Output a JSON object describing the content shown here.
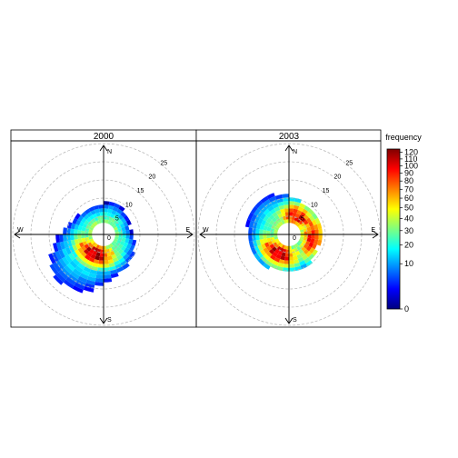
{
  "chart_data": {
    "type": "heatmap",
    "subtype": "polar-frequency",
    "panels": [
      {
        "title": "2000"
      },
      {
        "title": "2003"
      }
    ],
    "compass_labels": [
      "N",
      "E",
      "S",
      "W"
    ],
    "radial_tick_labels": [
      "0",
      "5",
      "10",
      "15",
      "20",
      "25"
    ],
    "radial_ticks": [
      0,
      5,
      10,
      15,
      20,
      25
    ],
    "radial_limit": 25,
    "grid": true,
    "legend": {
      "title": "frequency",
      "placement": "right",
      "tick_labels": [
        "0",
        "10",
        "20",
        "30",
        "40",
        "50",
        "60",
        "70",
        "80",
        "90",
        "100",
        "110",
        "120"
      ],
      "ticks": [
        0,
        10,
        20,
        30,
        40,
        50,
        60,
        70,
        80,
        90,
        100,
        110,
        120
      ],
      "range": [
        0,
        125
      ],
      "scale": "sqrt",
      "colors": [
        "#00007F",
        "#0000FF",
        "#007FFF",
        "#00FFFF",
        "#7FFF7F",
        "#FFFF00",
        "#FF7F00",
        "#FF0000",
        "#7F0000"
      ]
    },
    "series": [
      {
        "panel": "2000",
        "peak": {
          "direction_deg": 205,
          "speed": 6.0,
          "frequency": 115
        },
        "extent": [
          {
            "direction_deg": 0,
            "speed": 8
          },
          {
            "direction_deg": 20,
            "speed": 9
          },
          {
            "direction_deg": 45,
            "speed": 8
          },
          {
            "direction_deg": 80,
            "speed": 7
          },
          {
            "direction_deg": 110,
            "speed": 9
          },
          {
            "direction_deg": 140,
            "speed": 10
          },
          {
            "direction_deg": 170,
            "speed": 12
          },
          {
            "direction_deg": 200,
            "speed": 16
          },
          {
            "direction_deg": 230,
            "speed": 18
          },
          {
            "direction_deg": 260,
            "speed": 13
          },
          {
            "direction_deg": 290,
            "speed": 9
          },
          {
            "direction_deg": 320,
            "speed": 8
          },
          {
            "direction_deg": 360,
            "speed": 8
          }
        ]
      },
      {
        "panel": "2003",
        "peak": {
          "direction_deg": 210,
          "speed": 6.0,
          "frequency": 110
        },
        "secondary_peaks": [
          {
            "direction_deg": 25,
            "speed": 5.5,
            "frequency": 100
          },
          {
            "direction_deg": 95,
            "speed": 6.5,
            "frequency": 95
          }
        ],
        "extent": [
          {
            "direction_deg": 0,
            "speed": 10
          },
          {
            "direction_deg": 30,
            "speed": 9
          },
          {
            "direction_deg": 60,
            "speed": 9
          },
          {
            "direction_deg": 90,
            "speed": 9
          },
          {
            "direction_deg": 120,
            "speed": 8
          },
          {
            "direction_deg": 160,
            "speed": 10
          },
          {
            "direction_deg": 200,
            "speed": 10
          },
          {
            "direction_deg": 240,
            "speed": 11
          },
          {
            "direction_deg": 270,
            "speed": 11
          },
          {
            "direction_deg": 300,
            "speed": 12
          },
          {
            "direction_deg": 330,
            "speed": 12
          },
          {
            "direction_deg": 360,
            "speed": 10
          }
        ]
      }
    ]
  }
}
